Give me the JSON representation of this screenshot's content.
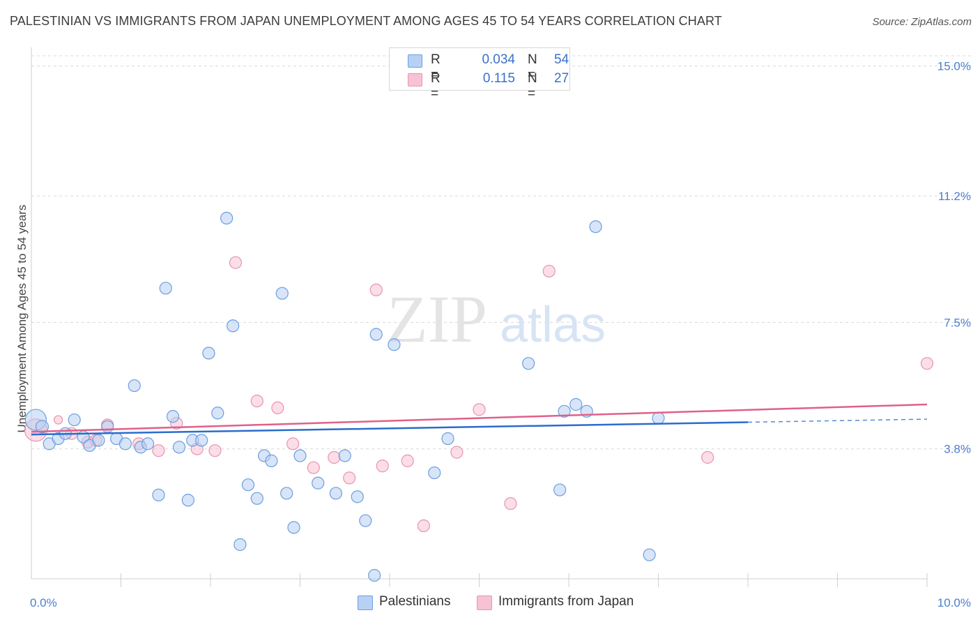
{
  "title": "PALESTINIAN VS IMMIGRANTS FROM JAPAN UNEMPLOYMENT AMONG AGES 45 TO 54 YEARS CORRELATION CHART",
  "source": "Source: ZipAtlas.com",
  "watermark": {
    "zip": "ZIP",
    "atlas": "atlas"
  },
  "legend": {
    "rows": [
      {
        "r_label": "R =",
        "r_value": "0.034",
        "n_label": "N =",
        "n_value": "54"
      },
      {
        "r_label": "R =",
        "r_value": "0.115",
        "n_label": "N =",
        "n_value": "27"
      }
    ]
  },
  "colors": {
    "blue_fill": "#b8d0f3",
    "blue_stroke": "#6a9ee0",
    "blue_line": "#2a6ccc",
    "pink_fill": "#f7c3d4",
    "pink_stroke": "#e893b0",
    "pink_line": "#e0608a",
    "tick_text": "#4a7fd0",
    "grid": "#d8d8d8"
  },
  "chart_data": {
    "type": "scatter",
    "title": "PALESTINIAN VS IMMIGRANTS FROM JAPAN UNEMPLOYMENT AMONG AGES 45 TO 54 YEARS CORRELATION CHART",
    "xlabel": "",
    "ylabel": "Unemployment Among Ages 45 to 54 years",
    "xlim": [
      0,
      10
    ],
    "ylim": [
      0,
      15.3
    ],
    "x_tick_labels": [
      "0.0%",
      "10.0%"
    ],
    "y_ticks": [
      3.8,
      7.5,
      11.2,
      15.0
    ],
    "y_tick_labels": [
      "3.8%",
      "7.5%",
      "11.2%",
      "15.0%"
    ],
    "grid": "horizontal dashed",
    "legend_position": "top-center",
    "series": [
      {
        "name": "Palestinians",
        "r": 0.034,
        "n": 54,
        "trend": {
          "x0": 0,
          "y0": 4.22,
          "x1": 8.0,
          "y1": 4.58,
          "dashed_to_x": 10,
          "dashed_to_y": 4.67
        },
        "points": [
          [
            0.05,
            4.65,
            30
          ],
          [
            0.12,
            4.45,
            18
          ],
          [
            0.2,
            3.95,
            10
          ],
          [
            0.3,
            4.1,
            10
          ],
          [
            0.38,
            4.25,
            10
          ],
          [
            0.48,
            4.65,
            10
          ],
          [
            0.58,
            4.15,
            10
          ],
          [
            0.65,
            3.9,
            10
          ],
          [
            0.75,
            4.05,
            10
          ],
          [
            0.85,
            4.45,
            10
          ],
          [
            0.95,
            4.1,
            10
          ],
          [
            1.05,
            3.95,
            10
          ],
          [
            1.15,
            5.65,
            10
          ],
          [
            1.22,
            3.85,
            10
          ],
          [
            1.3,
            3.95,
            10
          ],
          [
            1.42,
            2.45,
            10
          ],
          [
            1.5,
            8.5,
            10
          ],
          [
            1.58,
            4.75,
            10
          ],
          [
            1.65,
            3.85,
            10
          ],
          [
            1.75,
            2.3,
            10
          ],
          [
            1.8,
            4.05,
            10
          ],
          [
            1.9,
            4.05,
            10
          ],
          [
            1.98,
            6.6,
            10
          ],
          [
            2.08,
            4.85,
            10
          ],
          [
            2.18,
            10.55,
            10
          ],
          [
            2.25,
            7.4,
            10
          ],
          [
            2.33,
            1.0,
            10
          ],
          [
            2.42,
            2.75,
            10
          ],
          [
            2.52,
            2.35,
            10
          ],
          [
            2.6,
            3.6,
            10
          ],
          [
            2.68,
            3.45,
            10
          ],
          [
            2.8,
            8.35,
            10
          ],
          [
            2.85,
            2.5,
            10
          ],
          [
            2.93,
            1.5,
            10
          ],
          [
            3.0,
            3.6,
            10
          ],
          [
            3.2,
            2.8,
            10
          ],
          [
            3.4,
            2.5,
            10
          ],
          [
            3.5,
            3.6,
            10
          ],
          [
            3.64,
            2.4,
            10
          ],
          [
            3.73,
            1.7,
            10
          ],
          [
            3.83,
            0.1,
            10
          ],
          [
            3.85,
            7.15,
            10
          ],
          [
            4.05,
            6.85,
            10
          ],
          [
            4.5,
            3.1,
            10
          ],
          [
            4.65,
            4.1,
            10
          ],
          [
            5.55,
            6.3,
            10
          ],
          [
            5.9,
            2.6,
            10
          ],
          [
            5.95,
            4.9,
            10
          ],
          [
            6.08,
            5.1,
            10
          ],
          [
            6.2,
            4.9,
            10
          ],
          [
            6.3,
            10.3,
            10
          ],
          [
            6.9,
            0.7,
            10
          ],
          [
            7.0,
            4.7,
            10
          ]
        ]
      },
      {
        "name": "Immigrants from Japan",
        "r": 0.115,
        "n": 27,
        "trend": {
          "x0": 0,
          "y0": 4.3,
          "x1": 10,
          "y1": 5.1
        },
        "points": [
          [
            0.05,
            4.35,
            32
          ],
          [
            0.3,
            4.65,
            12
          ],
          [
            0.45,
            4.25,
            10
          ],
          [
            0.63,
            4.0,
            10
          ],
          [
            0.72,
            4.05,
            10
          ],
          [
            0.85,
            4.5,
            10
          ],
          [
            1.2,
            3.95,
            10
          ],
          [
            1.42,
            3.75,
            10
          ],
          [
            1.62,
            4.55,
            10
          ],
          [
            1.85,
            3.8,
            10
          ],
          [
            2.05,
            3.75,
            10
          ],
          [
            2.28,
            9.25,
            10
          ],
          [
            2.52,
            5.2,
            10
          ],
          [
            2.75,
            5.0,
            10
          ],
          [
            2.92,
            3.95,
            10
          ],
          [
            3.15,
            3.25,
            10
          ],
          [
            3.38,
            3.55,
            10
          ],
          [
            3.55,
            2.95,
            10
          ],
          [
            3.85,
            8.45,
            10
          ],
          [
            3.92,
            3.3,
            10
          ],
          [
            4.2,
            3.45,
            10
          ],
          [
            4.38,
            1.55,
            10
          ],
          [
            4.75,
            3.7,
            10
          ],
          [
            5.0,
            4.95,
            10
          ],
          [
            5.35,
            2.2,
            10
          ],
          [
            5.78,
            9.0,
            10
          ],
          [
            7.55,
            3.55,
            10
          ],
          [
            10.0,
            6.3,
            10
          ]
        ]
      }
    ]
  },
  "bottom_legend": [
    "Palestinians",
    "Immigrants from Japan"
  ]
}
